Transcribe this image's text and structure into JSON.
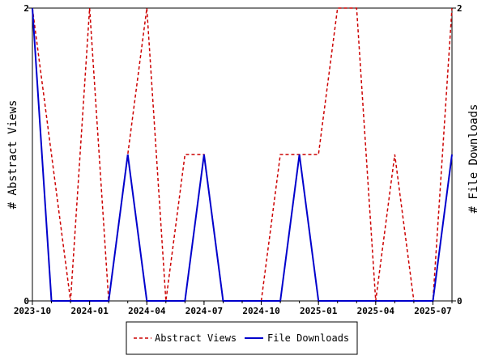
{
  "chart_data": {
    "type": "line",
    "x": [
      "2023-10",
      "2023-11",
      "2023-12",
      "2024-01",
      "2024-02",
      "2024-03",
      "2024-04",
      "2024-05",
      "2024-06",
      "2024-07",
      "2024-08",
      "2024-09",
      "2024-10",
      "2024-11",
      "2024-12",
      "2025-01",
      "2025-02",
      "2025-03",
      "2025-04",
      "2025-05",
      "2025-06",
      "2025-07",
      "2025-08"
    ],
    "x_tick_labels": [
      "2023-10",
      "2024-01",
      "2024-04",
      "2024-07",
      "2024-10",
      "2025-01",
      "2025-04",
      "2025-07"
    ],
    "series": [
      {
        "name": "Abstract Views",
        "axis": "left",
        "color": "#cc0000",
        "dash": true,
        "values": [
          2,
          1,
          0,
          2,
          0,
          1,
          2,
          0,
          1,
          1,
          0,
          0,
          0,
          1,
          1,
          1,
          2,
          2,
          0,
          1,
          0,
          0,
          2
        ]
      },
      {
        "name": "File Downloads",
        "axis": "right",
        "color": "#0000cc",
        "dash": false,
        "values": [
          2,
          0,
          0,
          0,
          0,
          1,
          0,
          0,
          0,
          1,
          0,
          0,
          0,
          0,
          1,
          0,
          0,
          0,
          0,
          0,
          0,
          0,
          1
        ]
      }
    ],
    "ylabel_left": "# Abstract Views",
    "ylabel_right": "# File Downloads",
    "ylim": [
      0,
      2
    ],
    "y_ticks": [
      "0",
      "2"
    ],
    "legend_position": "bottom-center",
    "grid": false
  }
}
